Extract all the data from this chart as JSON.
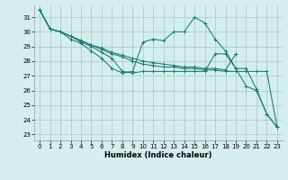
{
  "xlabel": "Humidex (Indice chaleur)",
  "bg_color": "#d4eeee",
  "grid_color": "#b0cccc",
  "line_color": "#1a7a6e",
  "xlim": [
    -0.5,
    23.5
  ],
  "ylim": [
    22.6,
    31.8
  ],
  "xticks": [
    0,
    1,
    2,
    3,
    4,
    5,
    6,
    7,
    8,
    9,
    10,
    11,
    12,
    13,
    14,
    15,
    16,
    17,
    18,
    19,
    20,
    21,
    22,
    23
  ],
  "yticks": [
    23,
    24,
    25,
    26,
    27,
    28,
    29,
    30,
    31
  ],
  "series": [
    {
      "x": [
        0,
        1,
        2,
        3,
        4,
        5,
        6,
        7,
        8,
        9,
        10,
        11,
        12,
        13,
        14,
        15,
        16,
        17,
        18,
        19
      ],
      "y": [
        31.5,
        30.2,
        30.0,
        29.7,
        29.4,
        29.1,
        28.9,
        28.6,
        28.4,
        28.2,
        28.0,
        27.9,
        27.8,
        27.7,
        27.6,
        27.6,
        27.5,
        27.5,
        27.4,
        28.5
      ]
    },
    {
      "x": [
        0,
        1,
        2,
        3,
        4,
        5,
        6,
        7,
        8,
        9,
        10,
        11,
        12,
        13,
        14,
        15,
        16,
        17,
        18,
        19,
        20,
        21,
        22,
        23
      ],
      "y": [
        31.5,
        30.2,
        30.0,
        29.5,
        29.2,
        28.7,
        28.2,
        27.5,
        27.2,
        27.3,
        29.3,
        29.5,
        29.4,
        30.0,
        30.0,
        31.0,
        30.6,
        29.5,
        28.7,
        27.5,
        26.3,
        26.0,
        24.4,
        23.5
      ]
    },
    {
      "x": [
        0,
        1,
        2,
        3,
        4,
        5,
        6,
        7,
        8,
        9,
        10,
        11,
        12,
        13,
        14,
        15,
        16,
        17,
        18,
        19,
        20,
        21,
        22,
        23
      ],
      "y": [
        31.5,
        30.2,
        30.0,
        29.7,
        29.4,
        29.1,
        28.8,
        28.5,
        28.3,
        28.0,
        27.8,
        27.7,
        27.6,
        27.6,
        27.5,
        27.5,
        27.4,
        27.4,
        27.3,
        27.3,
        27.3,
        27.3,
        27.3,
        23.5
      ]
    },
    {
      "x": [
        0,
        1,
        2,
        3,
        4,
        5,
        6,
        7,
        8,
        9,
        10,
        11,
        12,
        13,
        14,
        15,
        16,
        17,
        18,
        19,
        20,
        21,
        22,
        23
      ],
      "y": [
        31.5,
        30.2,
        30.0,
        29.7,
        29.3,
        29.0,
        28.6,
        28.2,
        27.3,
        27.2,
        27.3,
        27.3,
        27.3,
        27.3,
        27.3,
        27.3,
        27.3,
        28.5,
        28.5,
        27.5,
        27.5,
        26.1,
        24.4,
        23.5
      ]
    }
  ]
}
